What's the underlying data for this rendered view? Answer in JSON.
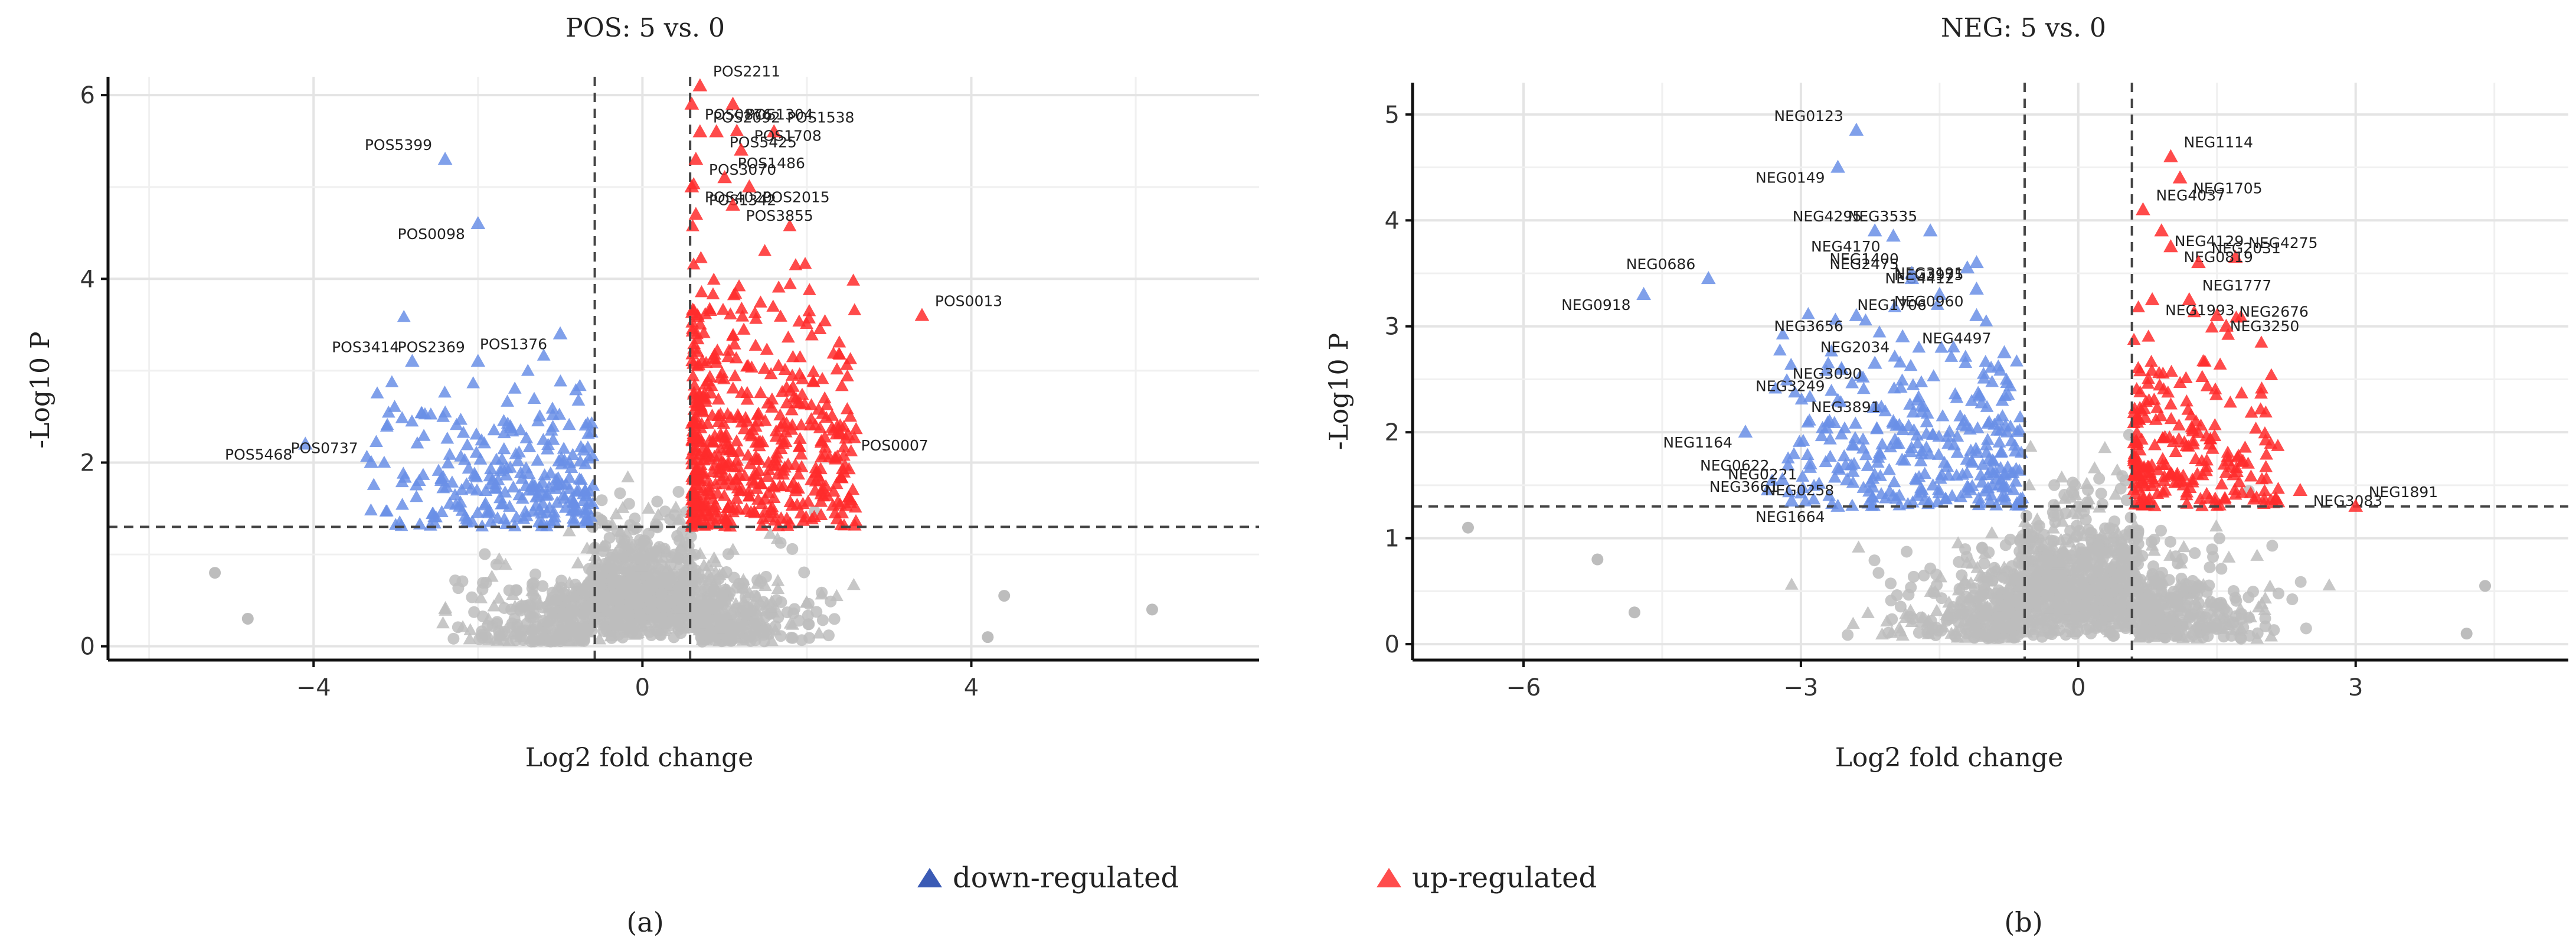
{
  "chart_data": [
    {
      "type": "scatter",
      "title": "POS: 5 vs. 0",
      "xlabel": "Log2 fold change",
      "ylabel": "-Log10 P",
      "xlim": [
        -6.5,
        7.5
      ],
      "ylim": [
        -0.15,
        6.2
      ],
      "xticks": [
        -4,
        0,
        4
      ],
      "yticks": [
        0,
        2,
        4,
        6
      ],
      "fc_cutoff": 0.58,
      "p_cutoff": 1.3,
      "grid": true,
      "colors": {
        "down": "#6a8fe6",
        "up": "#ff2b2b",
        "ns": "#bdbdbd"
      },
      "labeled_points": [
        {
          "name": "POS5399",
          "x": -2.4,
          "y": 5.3,
          "group": "down"
        },
        {
          "name": "POS0098",
          "x": -2.0,
          "y": 4.6,
          "group": "down"
        },
        {
          "name": "POS2369",
          "x": -2.0,
          "y": 3.1,
          "group": "down"
        },
        {
          "name": "POS1376",
          "x": -1.0,
          "y": 3.4,
          "group": "down"
        },
        {
          "name": "POS3414",
          "x": -2.8,
          "y": 3.1,
          "group": "down"
        },
        {
          "name": "POS5468",
          "x": -4.1,
          "y": 2.2,
          "group": "down"
        },
        {
          "name": "POS0737",
          "x": -3.3,
          "y": 2.0,
          "group": "down"
        },
        {
          "name": "POS0876",
          "x": 0.6,
          "y": 5.9,
          "group": "up"
        },
        {
          "name": "POS2211",
          "x": 0.7,
          "y": 6.1,
          "group": "up"
        },
        {
          "name": "POS1304",
          "x": 1.1,
          "y": 5.9,
          "group": "up"
        },
        {
          "name": "POS2092",
          "x": 0.7,
          "y": 5.6,
          "group": "up"
        },
        {
          "name": "POS5425",
          "x": 0.9,
          "y": 5.6,
          "group": "up"
        },
        {
          "name": "POS1538",
          "x": 1.6,
          "y": 5.6,
          "group": "up"
        },
        {
          "name": "POS3070",
          "x": 0.65,
          "y": 5.3,
          "group": "up"
        },
        {
          "name": "POS1708",
          "x": 1.2,
          "y": 5.4,
          "group": "up"
        },
        {
          "name": "POS4020",
          "x": 0.6,
          "y": 5.0,
          "group": "up"
        },
        {
          "name": "POS1486",
          "x": 1.0,
          "y": 5.1,
          "group": "up"
        },
        {
          "name": "POS2015",
          "x": 1.3,
          "y": 5.0,
          "group": "up"
        },
        {
          "name": "POS1342",
          "x": 0.65,
          "y": 4.7,
          "group": "up"
        },
        {
          "name": "POS3855",
          "x": 1.1,
          "y": 4.8,
          "group": "up"
        },
        {
          "name": "POS0013",
          "x": 3.4,
          "y": 3.6,
          "group": "up"
        },
        {
          "name": "POS0007",
          "x": 2.5,
          "y": 2.3,
          "group": "up"
        }
      ]
    },
    {
      "type": "scatter",
      "title": "NEG: 5 vs. 0",
      "xlabel": "Log2 fold change",
      "ylabel": "-Log10 P",
      "xlim": [
        -7.2,
        5.3
      ],
      "ylim": [
        -0.15,
        5.3
      ],
      "xticks": [
        -6,
        -3,
        0,
        3
      ],
      "yticks": [
        0,
        1,
        2,
        3,
        4,
        5
      ],
      "fc_cutoff": 0.58,
      "p_cutoff": 1.3,
      "grid": true,
      "colors": {
        "down": "#6a8fe6",
        "up": "#ff2b2b",
        "ns": "#bdbdbd"
      },
      "labeled_points": [
        {
          "name": "NEG0123",
          "x": -2.4,
          "y": 4.85,
          "group": "down"
        },
        {
          "name": "NEG0149",
          "x": -2.6,
          "y": 4.5,
          "group": "down"
        },
        {
          "name": "NEG4295",
          "x": -2.2,
          "y": 3.9,
          "group": "down"
        },
        {
          "name": "NEG4170",
          "x": -2.0,
          "y": 3.85,
          "group": "down"
        },
        {
          "name": "NEG3535",
          "x": -1.6,
          "y": 3.9,
          "group": "down"
        },
        {
          "name": "NEG3191",
          "x": -1.1,
          "y": 3.6,
          "group": "down"
        },
        {
          "name": "NEG1400",
          "x": -1.8,
          "y": 3.5,
          "group": "down"
        },
        {
          "name": "NEG4412",
          "x": -1.2,
          "y": 3.55,
          "group": "down"
        },
        {
          "name": "NEG0686",
          "x": -4.0,
          "y": 3.45,
          "group": "down"
        },
        {
          "name": "NEG0918",
          "x": -4.7,
          "y": 3.3,
          "group": "down"
        },
        {
          "name": "NEG2475",
          "x": -1.8,
          "y": 3.45,
          "group": "down"
        },
        {
          "name": "NEG1706",
          "x": -1.5,
          "y": 3.3,
          "group": "down"
        },
        {
          "name": "NEG3975",
          "x": -1.1,
          "y": 3.35,
          "group": "down"
        },
        {
          "name": "NEG3656",
          "x": -2.4,
          "y": 3.1,
          "group": "down"
        },
        {
          "name": "NEG0960",
          "x": -1.1,
          "y": 3.1,
          "group": "down"
        },
        {
          "name": "NEG2034",
          "x": -1.9,
          "y": 2.9,
          "group": "down"
        },
        {
          "name": "NEG4497",
          "x": -0.8,
          "y": 2.75,
          "group": "down"
        },
        {
          "name": "NEG3090",
          "x": -2.2,
          "y": 2.65,
          "group": "down"
        },
        {
          "name": "NEG3249",
          "x": -2.6,
          "y": 2.3,
          "group": "down"
        },
        {
          "name": "NEG1164",
          "x": -3.6,
          "y": 2.0,
          "group": "down"
        },
        {
          "name": "NEG3891",
          "x": -2.0,
          "y": 2.1,
          "group": "down"
        },
        {
          "name": "NEG0221",
          "x": -2.9,
          "y": 1.7,
          "group": "down"
        },
        {
          "name": "NEG0622",
          "x": -3.2,
          "y": 1.55,
          "group": "down"
        },
        {
          "name": "NEG0258",
          "x": -2.5,
          "y": 1.55,
          "group": "down"
        },
        {
          "name": "NEG3661",
          "x": -3.1,
          "y": 1.35,
          "group": "down"
        },
        {
          "name": "NEG1664",
          "x": -2.6,
          "y": 1.3,
          "group": "down"
        },
        {
          "name": "NEG1114",
          "x": 1.0,
          "y": 4.6,
          "group": "up"
        },
        {
          "name": "NEG1705",
          "x": 1.1,
          "y": 4.4,
          "group": "up"
        },
        {
          "name": "NEG4037",
          "x": 0.7,
          "y": 4.1,
          "group": "up"
        },
        {
          "name": "NEG4129",
          "x": 0.9,
          "y": 3.9,
          "group": "up"
        },
        {
          "name": "NEG4275",
          "x": 1.7,
          "y": 3.65,
          "group": "up"
        },
        {
          "name": "NEG0819",
          "x": 1.0,
          "y": 3.75,
          "group": "up"
        },
        {
          "name": "NEG2031",
          "x": 1.3,
          "y": 3.6,
          "group": "up"
        },
        {
          "name": "NEG1993",
          "x": 0.8,
          "y": 3.25,
          "group": "up"
        },
        {
          "name": "NEG1777",
          "x": 1.2,
          "y": 3.25,
          "group": "up"
        },
        {
          "name": "NEG3250",
          "x": 1.5,
          "y": 3.1,
          "group": "up"
        },
        {
          "name": "NEG2676",
          "x": 1.6,
          "y": 3.0,
          "group": "up"
        },
        {
          "name": "NEG3083",
          "x": 2.4,
          "y": 1.45,
          "group": "up"
        },
        {
          "name": "NEG1891",
          "x": 3.0,
          "y": 1.3,
          "group": "up"
        }
      ]
    }
  ],
  "legend": {
    "position": "bottom",
    "entries": [
      {
        "label": "down-regulated",
        "color": "#3b5bb5"
      },
      {
        "label": "up-regulated",
        "color": "#ff4d4d"
      }
    ]
  },
  "captions": [
    "(a)",
    "(b)"
  ]
}
